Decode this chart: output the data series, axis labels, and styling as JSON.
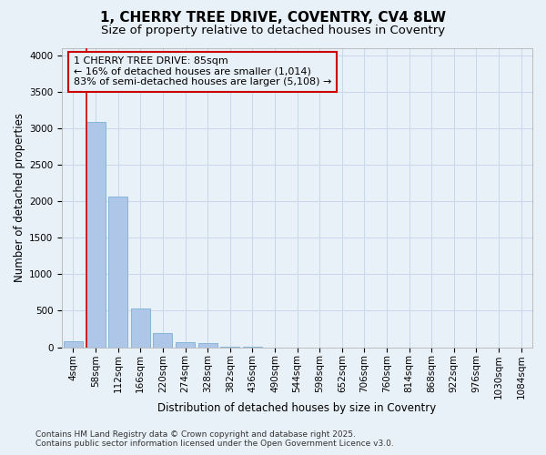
{
  "title": "1, CHERRY TREE DRIVE, COVENTRY, CV4 8LW",
  "subtitle": "Size of property relative to detached houses in Coventry",
  "xlabel": "Distribution of detached houses by size in Coventry",
  "ylabel": "Number of detached properties",
  "categories": [
    "4sqm",
    "58sqm",
    "112sqm",
    "166sqm",
    "220sqm",
    "274sqm",
    "328sqm",
    "382sqm",
    "436sqm",
    "490sqm",
    "544sqm",
    "598sqm",
    "652sqm",
    "706sqm",
    "760sqm",
    "814sqm",
    "868sqm",
    "922sqm",
    "976sqm",
    "1030sqm",
    "1084sqm"
  ],
  "values": [
    80,
    3090,
    2060,
    535,
    195,
    75,
    55,
    10,
    10,
    0,
    0,
    0,
    0,
    0,
    0,
    0,
    0,
    0,
    0,
    0,
    0
  ],
  "bar_color": "#aec6e8",
  "bar_edge_color": "#7ab0d4",
  "vline_color": "#cc0000",
  "vline_pos": 0.6,
  "annotation_box_text": "1 CHERRY TREE DRIVE: 85sqm\n← 16% of detached houses are smaller (1,014)\n83% of semi-detached houses are larger (5,108) →",
  "annotation_box_color": "#cc0000",
  "grid_color": "#c8d8ea",
  "bg_color": "#e8f0f8",
  "ylim": [
    0,
    4100
  ],
  "yticks": [
    0,
    500,
    1000,
    1500,
    2000,
    2500,
    3000,
    3500,
    4000
  ],
  "footer_line1": "Contains HM Land Registry data © Crown copyright and database right 2025.",
  "footer_line2": "Contains public sector information licensed under the Open Government Licence v3.0.",
  "title_fontsize": 11,
  "subtitle_fontsize": 9.5,
  "axis_label_fontsize": 8.5,
  "tick_fontsize": 7.5,
  "annot_fontsize": 8,
  "footer_fontsize": 6.5
}
